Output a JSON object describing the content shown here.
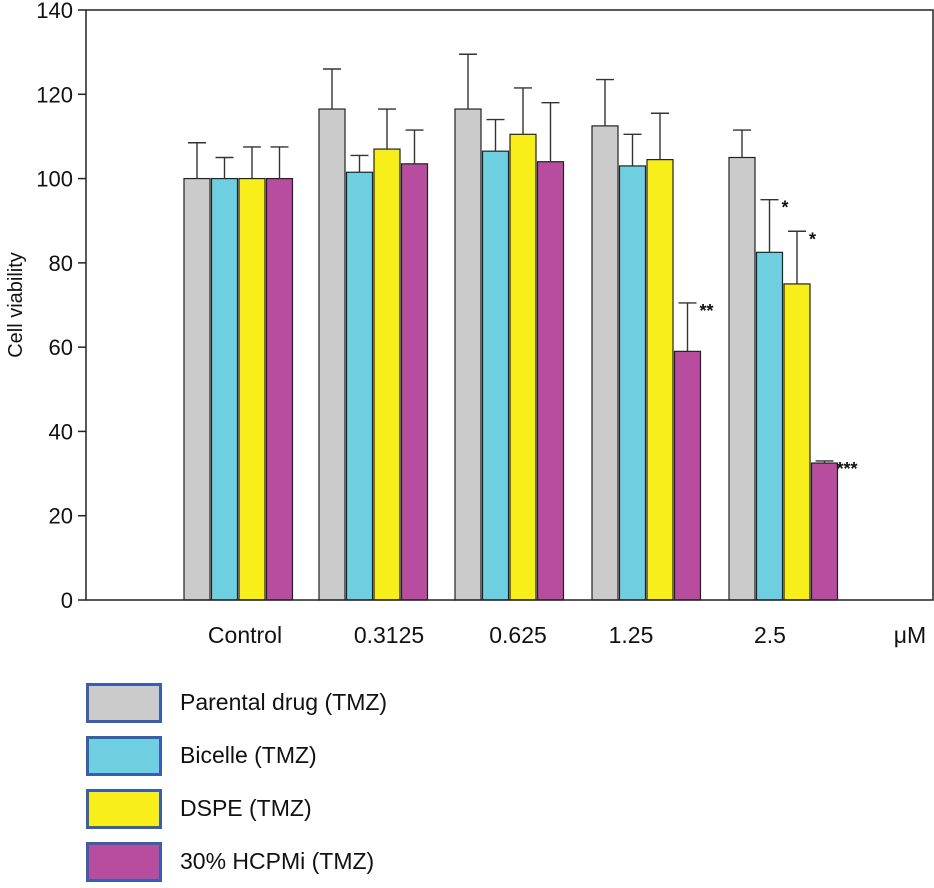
{
  "chart_data": {
    "type": "bar",
    "title": "",
    "xlabel": "",
    "ylabel": "Cell viability",
    "x_unit": "μM",
    "ylim": [
      0,
      140
    ],
    "yticks": [
      0,
      20,
      40,
      60,
      80,
      100,
      120,
      140
    ],
    "categories": [
      "Control",
      "0.3125",
      "0.625",
      "1.25",
      "2.5"
    ],
    "series": [
      {
        "name": "Parental drug (TMZ)",
        "color": "#cbcbcb",
        "values": [
          100,
          116.5,
          116.5,
          112.5,
          105
        ],
        "errors": [
          8.5,
          9.5,
          13,
          11,
          6.5
        ]
      },
      {
        "name": "Bicelle (TMZ)",
        "color": "#6dcfe0",
        "values": [
          100,
          101.5,
          106.5,
          103,
          82.5
        ],
        "errors": [
          5,
          4,
          7.5,
          7.5,
          12.5
        ]
      },
      {
        "name": "DSPE (TMZ)",
        "color": "#f8ee19",
        "values": [
          100,
          107,
          110.5,
          104.5,
          75
        ],
        "errors": [
          7.5,
          9.5,
          11,
          11,
          12.5
        ]
      },
      {
        "name": "30% HCPMi (TMZ)",
        "color": "#b84c9e",
        "values": [
          100,
          103.5,
          104,
          59,
          32.5
        ],
        "errors": [
          7.5,
          8,
          14,
          11.5,
          0.5
        ]
      }
    ],
    "significance": [
      {
        "category": "1.25",
        "series": "30% HCPMi (TMZ)",
        "label": "**"
      },
      {
        "category": "2.5",
        "series": "Bicelle (TMZ)",
        "label": "*"
      },
      {
        "category": "2.5",
        "series": "DSPE (TMZ)",
        "label": "*"
      },
      {
        "category": "2.5",
        "series": "30% HCPMi (TMZ)",
        "label": "***"
      }
    ],
    "legend_position": "bottom-left"
  }
}
